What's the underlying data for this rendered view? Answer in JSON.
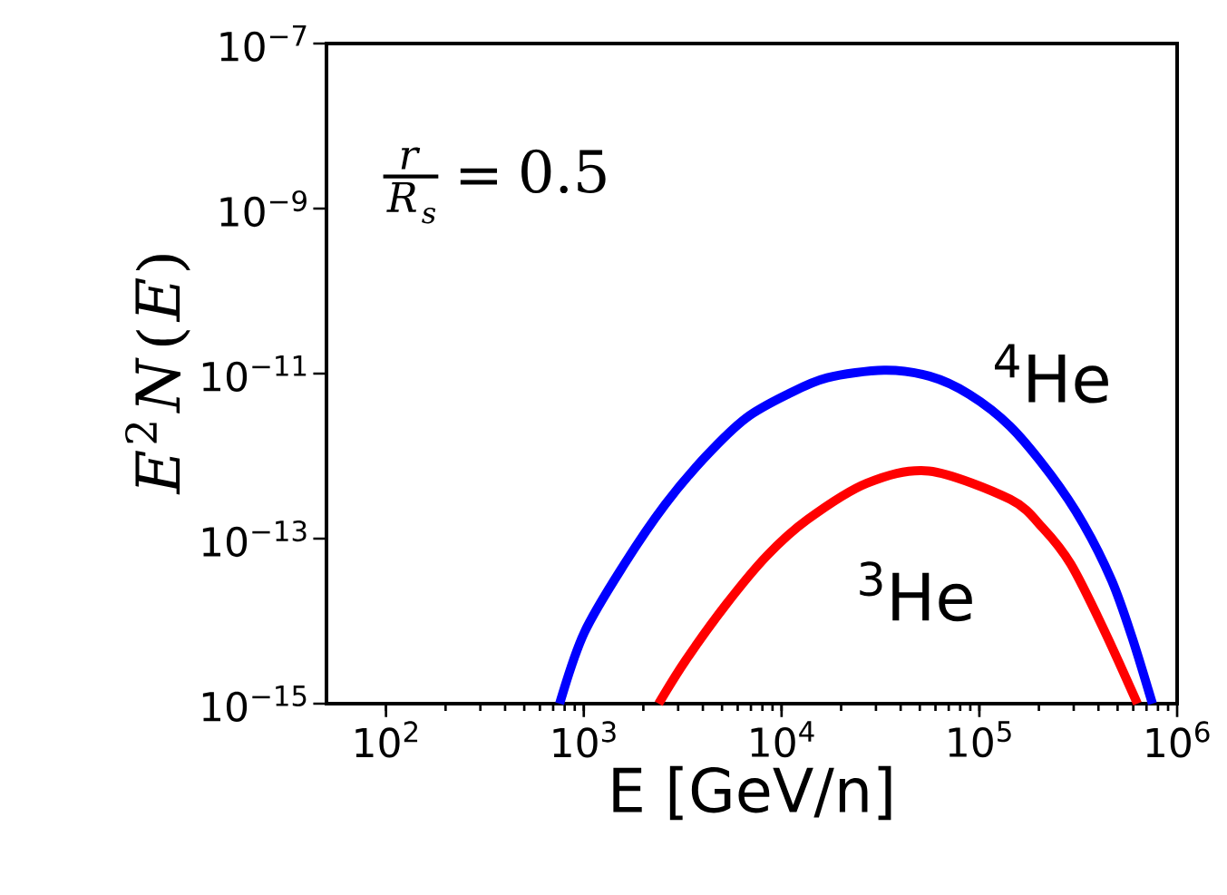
{
  "chart_data": {
    "type": "line",
    "log": "xy",
    "xlabel": "E [GeV/n]",
    "ylabel": "E^{2}N(E)",
    "xlim": [
      50,
      1000000
    ],
    "ylim": [
      1e-15,
      1e-07
    ],
    "xticks": [
      {
        "value": 100,
        "label": "10$^{2}$"
      },
      {
        "value": 1000,
        "label": "10$^{3}$"
      },
      {
        "value": 10000,
        "label": "10$^{4}$"
      },
      {
        "value": 100000,
        "label": "10$^{5}$"
      },
      {
        "value": 1000000,
        "label": "10$^{6}$"
      }
    ],
    "yticks": [
      {
        "value": 1e-15,
        "label": "10$^{−15}$"
      },
      {
        "value": 1e-13,
        "label": "10$^{−13}$"
      },
      {
        "value": 1e-11,
        "label": "10$^{−11}$"
      },
      {
        "value": 1e-09,
        "label": "10$^{−9}$"
      },
      {
        "value": 1e-07,
        "label": "10$^{−7}$"
      }
    ],
    "series": [
      {
        "color": "#0000ff",
        "x": [
          755,
          1004,
          1603,
          2580,
          4150,
          6620,
          10700,
          17000,
          33000,
          56000,
          89000,
          143000,
          230000,
          336000,
          467000,
          590000,
          750000
        ],
        "values": [
          1e-15,
          7.2e-15,
          4.9e-14,
          2.6e-13,
          1e-12,
          2.9e-12,
          5.6e-12,
          8.9e-12,
          1.1e-11,
          9.3e-12,
          5.6e-12,
          2.3e-12,
          5.9e-13,
          1.5e-13,
          3.1e-14,
          6.5e-15,
          1e-15
        ]
      },
      {
        "color": "#ff0000",
        "x": [
          2390,
          3260,
          5250,
          8430,
          13500,
          27000,
          55600,
          143000,
          209000,
          290000,
          425000,
          630000
        ],
        "values": [
          1e-15,
          3.3e-15,
          1.6e-14,
          6.2e-14,
          1.7e-13,
          4.7e-13,
          6.6e-13,
          3e-13,
          1.35e-13,
          4.9e-14,
          8e-15,
          1e-15
        ]
      }
    ],
    "annotations": [
      "$^{4}$He",
      "$^{3}$He",
      "\\frac{r}{R_s} = 0.5"
    ]
  }
}
